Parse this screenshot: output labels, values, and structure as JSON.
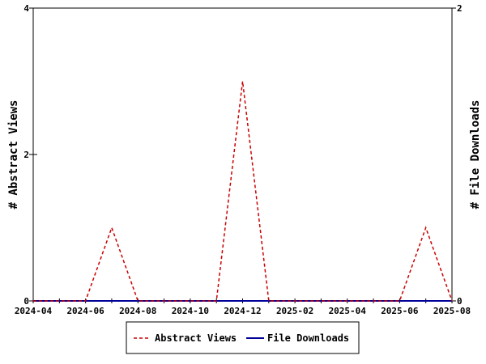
{
  "chart_data": {
    "type": "line",
    "x_tick_labels": [
      "2024-04",
      "2024-06",
      "2024-08",
      "2024-10",
      "2024-12",
      "2025-02",
      "2025-04",
      "2025-06",
      "2025-08"
    ],
    "x_months": [
      "2024-04",
      "2024-05",
      "2024-06",
      "2024-07",
      "2024-08",
      "2024-09",
      "2024-10",
      "2024-11",
      "2024-12",
      "2025-01",
      "2025-02",
      "2025-03",
      "2025-04",
      "2025-05",
      "2025-06",
      "2025-07",
      "2025-08"
    ],
    "y_left": {
      "label": "# Abstract Views",
      "ticks": [
        0,
        2,
        4
      ],
      "ylim": [
        0,
        4
      ]
    },
    "y_right": {
      "label": "# File Downloads",
      "ticks": [
        0,
        2
      ],
      "ylim": [
        0,
        2
      ]
    },
    "series": [
      {
        "name": "Abstract Views",
        "axis": "left",
        "color": "#cc0000",
        "style": "dashed",
        "values": [
          0,
          0,
          0,
          1,
          0,
          0,
          0,
          0,
          3,
          0,
          0,
          0,
          0,
          0,
          0,
          1,
          0
        ]
      },
      {
        "name": "File Downloads",
        "axis": "right",
        "color": "#000099",
        "style": "solid",
        "values": [
          0,
          0,
          0,
          0,
          0,
          0,
          0,
          0,
          0,
          0,
          0,
          0,
          0,
          0,
          0,
          0,
          0
        ]
      }
    ],
    "grid": false,
    "legend_position": "bottom"
  }
}
